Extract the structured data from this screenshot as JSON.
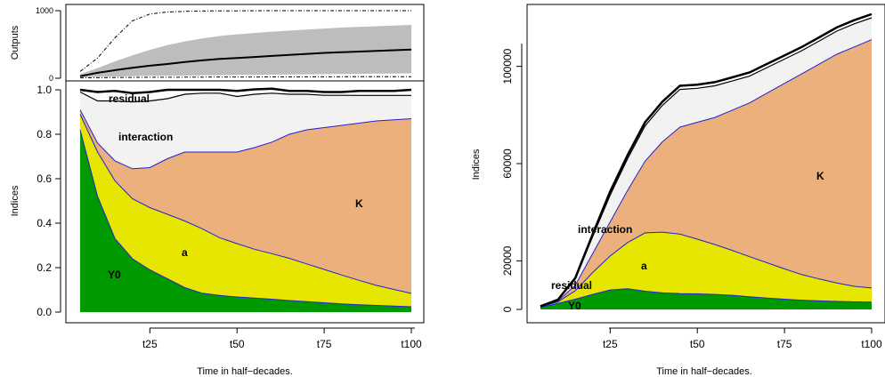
{
  "chart_data": [
    {
      "panel": "outputs",
      "type": "line",
      "ylabel": "Outputs",
      "ylim": [
        0,
        1000
      ],
      "yticks": [
        0,
        1000
      ],
      "x": [
        5,
        10,
        15,
        20,
        25,
        30,
        35,
        40,
        45,
        50,
        55,
        60,
        65,
        70,
        75,
        80,
        85,
        90,
        95,
        100
      ],
      "series": [
        {
          "style": "mean",
          "values": [
            30,
            80,
            120,
            155,
            185,
            210,
            240,
            265,
            285,
            300,
            315,
            330,
            345,
            360,
            375,
            385,
            395,
            405,
            415,
            425
          ]
        },
        {
          "style": "band-upper",
          "values": [
            60,
            150,
            250,
            340,
            420,
            490,
            545,
            590,
            625,
            650,
            670,
            690,
            705,
            720,
            735,
            750,
            760,
            770,
            780,
            790
          ]
        },
        {
          "style": "band-lower",
          "values": [
            10,
            20,
            25,
            30,
            35,
            38,
            40,
            42,
            45,
            48,
            50,
            52,
            55,
            58,
            60,
            62,
            65,
            68,
            70,
            72
          ]
        },
        {
          "style": "upper-dashed",
          "values": [
            100,
            300,
            600,
            850,
            950,
            980,
            990,
            995,
            997,
            998,
            999,
            1000,
            1000,
            1000,
            1000,
            1000,
            1000,
            1000,
            1000,
            1000
          ]
        },
        {
          "style": "lower-dashed",
          "values": [
            5,
            8,
            10,
            12,
            14,
            15,
            16,
            17,
            18,
            18,
            19,
            20,
            20,
            21,
            21,
            22,
            22,
            22,
            23,
            23
          ]
        }
      ]
    },
    {
      "panel": "normalized",
      "type": "area",
      "xlabel": "Time in half−decades.",
      "ylabel": "Indices",
      "ylim": [
        0,
        1.0
      ],
      "yticks": [
        0.0,
        0.2,
        0.4,
        0.6,
        0.8,
        1.0
      ],
      "ytick_labels": [
        "0.0",
        "0.2",
        "0.4",
        "0.6",
        "0.8",
        "1.0"
      ],
      "xtick_values": [
        25,
        50,
        75,
        100
      ],
      "xtick_labels": [
        "t25",
        "t50",
        "t75",
        "t100"
      ],
      "x": [
        5,
        10,
        15,
        20,
        25,
        30,
        35,
        40,
        45,
        50,
        55,
        60,
        65,
        70,
        75,
        80,
        85,
        90,
        95,
        100
      ],
      "series": [
        {
          "name": "Y0",
          "color": "#009a00",
          "values": [
            0.82,
            0.52,
            0.33,
            0.24,
            0.19,
            0.15,
            0.11,
            0.085,
            0.075,
            0.068,
            0.063,
            0.058,
            0.052,
            0.047,
            0.042,
            0.037,
            0.033,
            0.03,
            0.027,
            0.024
          ]
        },
        {
          "name": "a",
          "color": "#e6e600",
          "values": [
            0.07,
            0.2,
            0.26,
            0.27,
            0.28,
            0.29,
            0.3,
            0.29,
            0.26,
            0.24,
            0.22,
            0.205,
            0.19,
            0.17,
            0.15,
            0.13,
            0.11,
            0.09,
            0.075,
            0.06
          ]
        },
        {
          "name": "K",
          "color": "#ebb07c",
          "values": [
            0.02,
            0.04,
            0.09,
            0.135,
            0.18,
            0.25,
            0.31,
            0.345,
            0.385,
            0.412,
            0.457,
            0.502,
            0.558,
            0.603,
            0.638,
            0.673,
            0.707,
            0.74,
            0.763,
            0.786
          ]
        },
        {
          "name": "interaction",
          "color": "#f2f2f2",
          "values": [
            0.08,
            0.19,
            0.27,
            0.3,
            0.3,
            0.27,
            0.26,
            0.265,
            0.265,
            0.25,
            0.24,
            0.22,
            0.18,
            0.16,
            0.145,
            0.135,
            0.125,
            0.115,
            0.11,
            0.105
          ]
        },
        {
          "name": "residual",
          "color": "#ffffff",
          "values": [
            0.01,
            0.04,
            0.045,
            0.04,
            0.04,
            0.04,
            0.02,
            0.015,
            0.015,
            0.025,
            0.022,
            0.02,
            0.015,
            0.015,
            0.015,
            0.015,
            0.02,
            0.02,
            0.02,
            0.025
          ]
        }
      ],
      "labels": [
        "residual",
        "interaction",
        "K",
        "a",
        "Y0"
      ]
    },
    {
      "panel": "absolute",
      "type": "area",
      "xlabel": "Time in half−decades.",
      "ylabel": "Indices",
      "ylim": [
        0,
        120000
      ],
      "yticks": [
        0,
        20000,
        60000,
        100000
      ],
      "ytick_labels": [
        "0",
        "20000",
        "60000",
        "100000"
      ],
      "xtick_values": [
        25,
        50,
        75,
        100
      ],
      "xtick_labels": [
        "t25",
        "t50",
        "t75",
        "t100"
      ],
      "x": [
        5,
        10,
        15,
        20,
        25,
        30,
        35,
        40,
        45,
        50,
        55,
        60,
        65,
        70,
        75,
        80,
        85,
        90,
        95,
        100
      ],
      "series": [
        {
          "name": "Y0",
          "color": "#009a00",
          "values": [
            800,
            2500,
            4200,
            6200,
            8000,
            8500,
            7500,
            6800,
            6500,
            6400,
            6200,
            5800,
            5200,
            4700,
            4200,
            3800,
            3500,
            3300,
            3100,
            3000
          ]
        },
        {
          "name": "a",
          "color": "#e6e600",
          "values": [
            200,
            600,
            3500,
            9000,
            14000,
            19000,
            24000,
            25000,
            24500,
            22500,
            20500,
            18500,
            16500,
            14500,
            12500,
            10500,
            9000,
            7600,
            6400,
            5800
          ]
        },
        {
          "name": "K",
          "color": "#ebb07c",
          "values": [
            100,
            300,
            2300,
            7800,
            14000,
            21500,
            29500,
            37200,
            44000,
            48100,
            52300,
            57700,
            63300,
            69800,
            76300,
            82700,
            88500,
            94100,
            98500,
            102200
          ]
        },
        {
          "name": "interaction",
          "color": "#f2f2f2",
          "values": [
            100,
            400,
            2500,
            7000,
            11000,
            13000,
            14500,
            15000,
            15500,
            14000,
            13000,
            12000,
            11000,
            10500,
            10000,
            9500,
            9500,
            9500,
            9500,
            9000
          ]
        },
        {
          "name": "residual",
          "color": "#ffffff",
          "values": [
            100,
            200,
            500,
            1000,
            1500,
            1500,
            1500,
            1500,
            1500,
            1500,
            1500,
            1500,
            1500,
            1500,
            1500,
            1500,
            1500,
            1500,
            1500,
            1500
          ]
        }
      ],
      "labels": [
        "residual",
        "interaction",
        "K",
        "a",
        "Y0"
      ]
    }
  ]
}
